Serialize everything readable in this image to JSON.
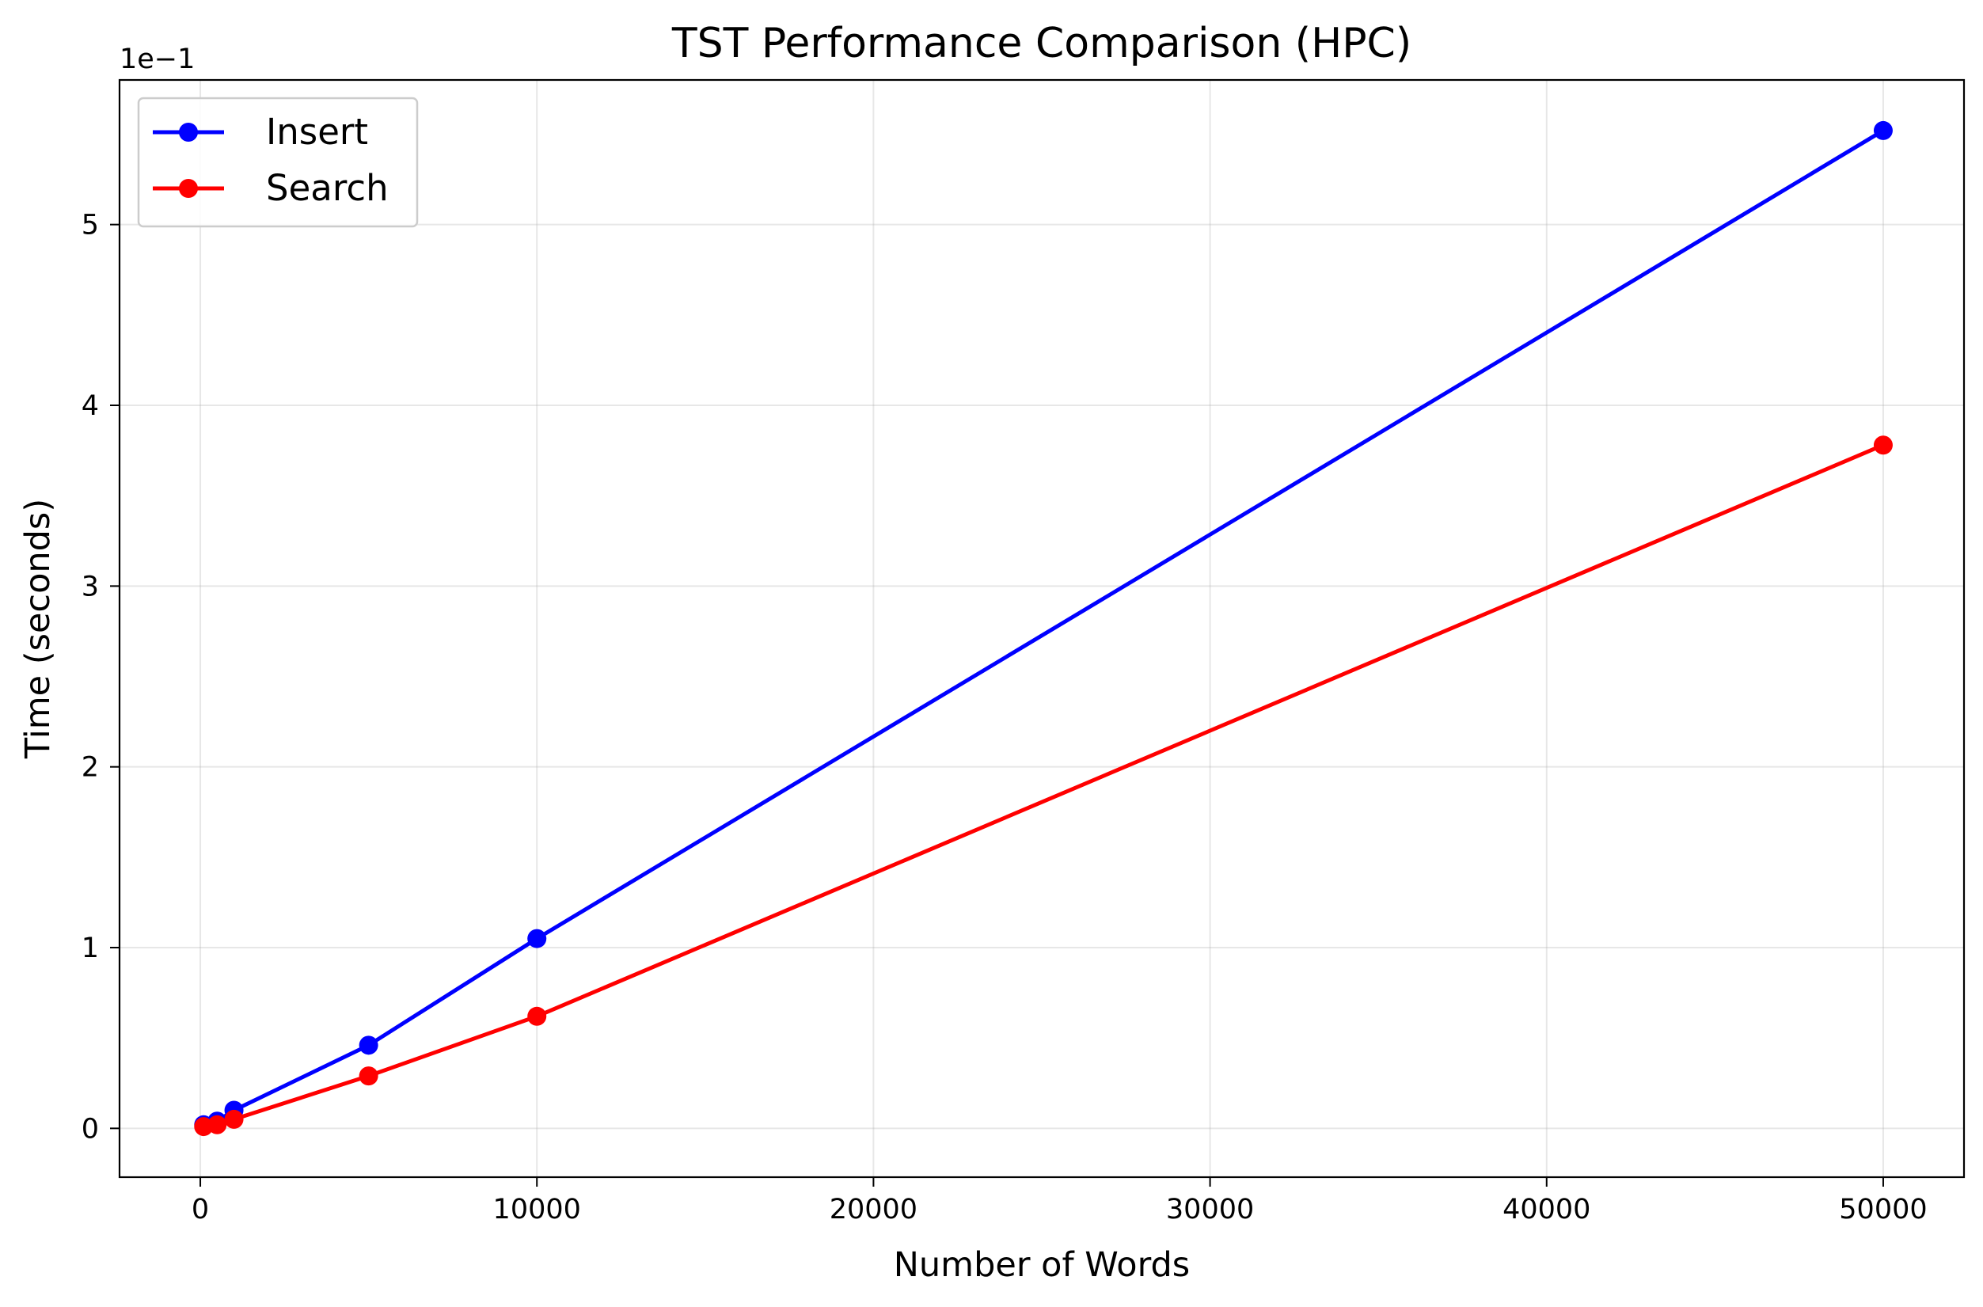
{
  "chart_data": {
    "type": "line",
    "title": "TST Performance Comparison (HPC)",
    "xlabel": "Number of Words",
    "ylabel": "Time (seconds)",
    "y_offset_text": "1e−1",
    "xlim": [
      -2400,
      52400
    ],
    "ylim": [
      -0.27,
      5.8
    ],
    "y_scale_note": "y values in units of 1e-1 seconds",
    "x_ticks": [
      0,
      10000,
      20000,
      30000,
      40000,
      50000
    ],
    "x_tick_labels": [
      "0",
      "10000",
      "20000",
      "30000",
      "40000",
      "50000"
    ],
    "y_ticks": [
      0,
      1,
      2,
      3,
      4,
      5
    ],
    "y_tick_labels": [
      "0",
      "1",
      "2",
      "3",
      "4",
      "5"
    ],
    "grid": true,
    "legend_position": "upper-left",
    "x": [
      100,
      500,
      1000,
      5000,
      10000,
      50000
    ],
    "series": [
      {
        "name": "Insert",
        "color": "#0000ff",
        "values": [
          0.02,
          0.04,
          0.1,
          0.46,
          1.05,
          5.52
        ]
      },
      {
        "name": "Search",
        "color": "#ff0000",
        "values": [
          0.01,
          0.02,
          0.05,
          0.29,
          0.62,
          3.78
        ]
      }
    ]
  }
}
